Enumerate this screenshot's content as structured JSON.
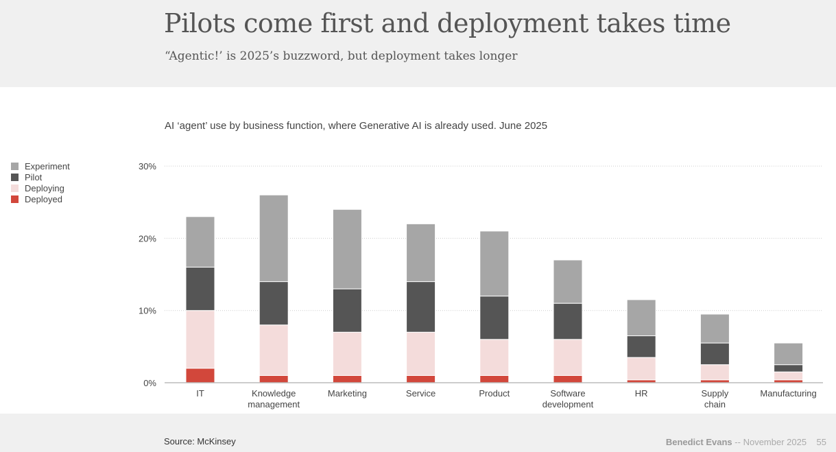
{
  "header": {
    "title": "Pilots come first and deployment takes time",
    "subtitle": "“Agentic!’ is 2025’s buzzword, but deployment takes longer"
  },
  "footer": {
    "source": "Source: McKinsey",
    "author": "Benedict Evans",
    "separator": "--",
    "date": "November 2025",
    "page": "55"
  },
  "chart_data": {
    "type": "bar",
    "stacked": true,
    "title": "AI ‘agent’ use by business function, where Generative AI is already used. June 2025",
    "categories": [
      [
        "IT"
      ],
      [
        "Knowledge",
        "management"
      ],
      [
        "Marketing"
      ],
      [
        "Service"
      ],
      [
        "Product"
      ],
      [
        "Software",
        "development"
      ],
      [
        "HR"
      ],
      [
        "Supply",
        "chain"
      ],
      [
        "Manufacturing"
      ]
    ],
    "series": [
      {
        "name": "Deployed",
        "color": "#d2473b",
        "values": [
          2,
          1,
          1,
          1,
          1,
          1,
          0.4,
          0.4,
          0.4
        ]
      },
      {
        "name": "Deploying",
        "color": "#f4dcdb",
        "values": [
          8,
          7,
          6,
          6,
          5,
          5,
          3.1,
          2.1,
          1.1
        ]
      },
      {
        "name": "Pilot",
        "color": "#555555",
        "values": [
          6,
          6,
          6,
          7,
          6,
          5,
          3,
          3,
          1
        ]
      },
      {
        "name": "Experiment",
        "color": "#a6a6a6",
        "values": [
          7,
          12,
          11,
          8,
          9,
          6,
          5,
          4,
          3
        ]
      }
    ],
    "legend_order": [
      "Experiment",
      "Pilot",
      "Deploying",
      "Deployed"
    ],
    "yticks": [
      "0%",
      "10%",
      "20%",
      "30%"
    ],
    "ylim": [
      0,
      30
    ],
    "grid": true,
    "legend": "left"
  }
}
